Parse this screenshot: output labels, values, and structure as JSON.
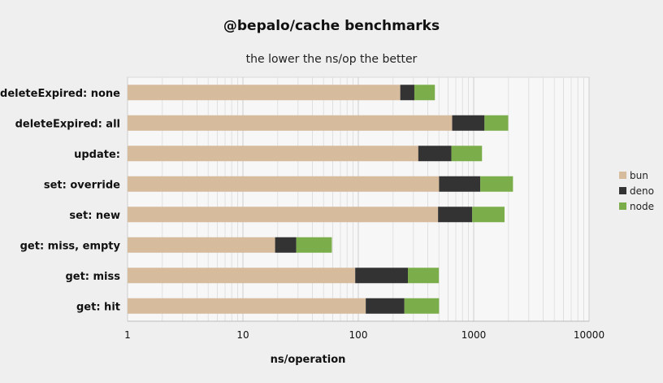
{
  "chart_data": {
    "type": "bar",
    "orientation": "horizontal",
    "stacked": true,
    "title": "@bepalo/cache benchmarks",
    "subtitle": "the lower the ns/op the better",
    "xlabel": "ns/operation",
    "ylabel": "",
    "xscale": "log",
    "xlim": [
      1,
      10000
    ],
    "xticks": [
      "1",
      "10",
      "100",
      "1000",
      "10000"
    ],
    "grid": true,
    "legend_position": "right",
    "categories": [
      "deleteExpired: none",
      "deleteExpired: all",
      "update:",
      "set: override",
      "set: new",
      "get: miss, empty",
      "get: miss",
      "get: hit"
    ],
    "series": [
      {
        "name": "bun",
        "color": "#d6bb9d",
        "values": [
          230,
          650,
          330,
          500,
          490,
          18,
          93,
          115
        ]
      },
      {
        "name": "deno",
        "color": "#333333",
        "values": [
          75,
          590,
          310,
          640,
          480,
          10,
          175,
          135
        ]
      },
      {
        "name": "node",
        "color": "#7bae4a",
        "values": [
          155,
          750,
          540,
          1050,
          880,
          30,
          230,
          250
        ]
      }
    ]
  }
}
